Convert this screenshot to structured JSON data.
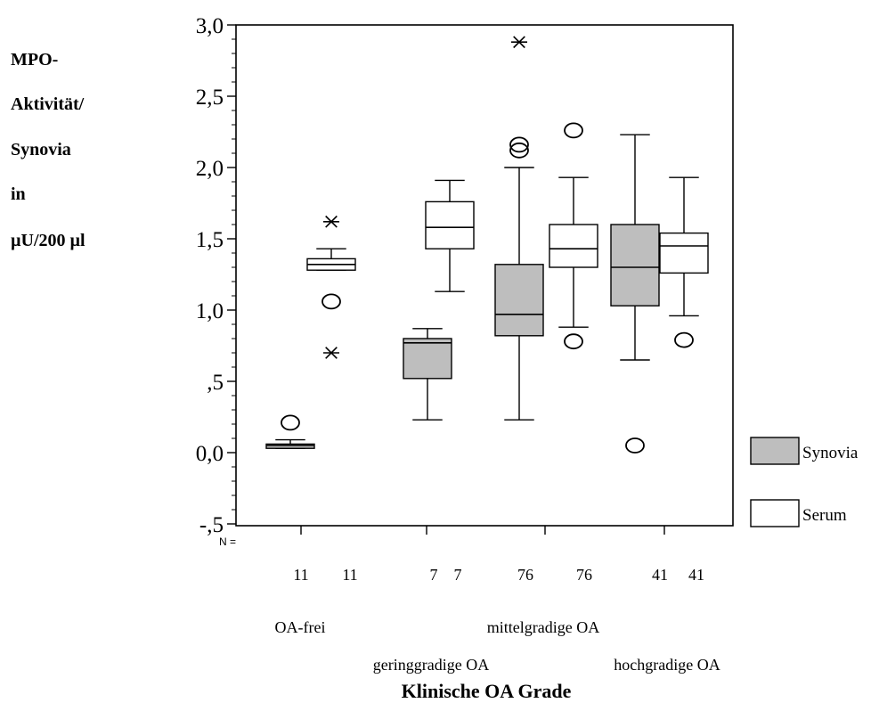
{
  "chart_data": {
    "type": "boxplot",
    "ylabel_lines": [
      "MPO-",
      "Aktivität/",
      "Synovia",
      "in",
      "µU/200 µl"
    ],
    "xlabel": "Klinische OA Grade",
    "ylim": [
      -0.6,
      3.0
    ],
    "yticks": [
      {
        "value": 3.0,
        "label": "3,0"
      },
      {
        "value": 2.5,
        "label": "2,5"
      },
      {
        "value": 2.0,
        "label": "2,0"
      },
      {
        "value": 1.5,
        "label": "1,5"
      },
      {
        "value": 1.0,
        "label": "1,0"
      },
      {
        "value": 0.5,
        "label": ",5"
      },
      {
        "value": 0.0,
        "label": "0,0"
      },
      {
        "value": -0.5,
        "label": "-,5"
      }
    ],
    "n_prefix": "N =",
    "categories": [
      {
        "label": "OA-frei",
        "row": 1
      },
      {
        "label": "geringgradige OA",
        "row": 2
      },
      {
        "label": "mittelgradige OA",
        "row": 1
      },
      {
        "label": "hochgradige OA",
        "row": 2
      }
    ],
    "series": [
      {
        "name": "Synovia",
        "color": "#bebebe",
        "boxes": [
          {
            "n": "11",
            "min": 0.03,
            "q1": 0.03,
            "median": 0.05,
            "q3": 0.06,
            "max": 0.09,
            "outliers": [
              0.21
            ],
            "extremes": []
          },
          {
            "n": "7",
            "min": 0.23,
            "q1": 0.52,
            "median": 0.77,
            "q3": 0.8,
            "max": 0.87,
            "outliers": [],
            "extremes": []
          },
          {
            "n": "76",
            "min": 0.23,
            "q1": 0.82,
            "median": 0.97,
            "q3": 1.32,
            "max": 2.0,
            "outliers": [
              2.12,
              2.16
            ],
            "extremes": [
              2.88
            ]
          },
          {
            "n": "41",
            "min": 0.65,
            "q1": 1.03,
            "median": 1.3,
            "q3": 1.6,
            "max": 2.23,
            "outliers": [
              0.05
            ],
            "extremes": []
          }
        ]
      },
      {
        "name": "Serum",
        "color": "#ffffff",
        "boxes": [
          {
            "n": "11",
            "min": 1.28,
            "q1": 1.28,
            "median": 1.32,
            "q3": 1.36,
            "max": 1.43,
            "outliers": [
              1.06
            ],
            "extremes": [
              1.62,
              0.7
            ]
          },
          {
            "n": "7",
            "min": 1.13,
            "q1": 1.43,
            "median": 1.58,
            "q3": 1.76,
            "max": 1.91,
            "outliers": [],
            "extremes": []
          },
          {
            "n": "76",
            "min": 0.88,
            "q1": 1.3,
            "median": 1.43,
            "q3": 1.6,
            "max": 1.93,
            "outliers": [
              0.78,
              2.26
            ],
            "extremes": []
          },
          {
            "n": "41",
            "min": 0.96,
            "q1": 1.26,
            "median": 1.45,
            "q3": 1.54,
            "max": 1.93,
            "outliers": [
              0.79
            ],
            "extremes": []
          }
        ]
      }
    ],
    "legend_position": "right-bottom"
  }
}
